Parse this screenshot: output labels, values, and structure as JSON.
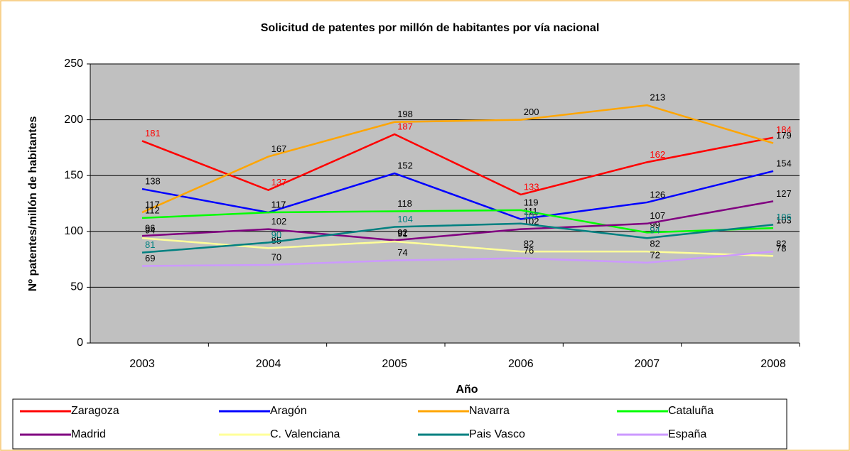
{
  "chart_data": {
    "type": "line",
    "title": "Solicitud de patentes por millón de habitantes por vía nacional",
    "x_label": "Año",
    "y_label": "Nº patentes/millón de habitantes",
    "categories": [
      "2003",
      "2004",
      "2005",
      "2006",
      "2007",
      "2008"
    ],
    "ylim": [
      0,
      250
    ],
    "yticks": [
      0,
      50,
      100,
      150,
      200,
      250
    ],
    "grid": true,
    "legend": "bottom",
    "series": [
      {
        "name": "Zaragoza",
        "color": "#ff0000",
        "label_color": "#ff0000",
        "values": [
          181,
          137,
          187,
          133,
          162,
          184
        ]
      },
      {
        "name": "Aragón",
        "color": "#0000ff",
        "label_color": "#000000",
        "values": [
          138,
          117,
          152,
          111,
          126,
          154
        ]
      },
      {
        "name": "Navarra",
        "color": "#ffa500",
        "label_color": "#000000",
        "values": [
          117,
          167,
          198,
          200,
          213,
          179
        ]
      },
      {
        "name": "Cataluña",
        "color": "#00ff00",
        "label_color": "#000000",
        "values": [
          112,
          117,
          118,
          119,
          99,
          103
        ]
      },
      {
        "name": "Madrid",
        "color": "#800080",
        "label_color": "#000000",
        "values": [
          96,
          102,
          92,
          102,
          107,
          127
        ]
      },
      {
        "name": "C. Valenciana",
        "color": "#ffff99",
        "label_color": "#000000",
        "values": [
          94,
          85,
          91,
          82,
          82,
          78
        ]
      },
      {
        "name": "Pais Vasco",
        "color": "#008080",
        "label_color": "#008080",
        "values": [
          81,
          90,
          104,
          107,
          94,
          106
        ]
      },
      {
        "name": "España",
        "color": "#cc99ff",
        "label_color": "#000000",
        "values": [
          69,
          70,
          74,
          76,
          72,
          82
        ]
      }
    ]
  }
}
